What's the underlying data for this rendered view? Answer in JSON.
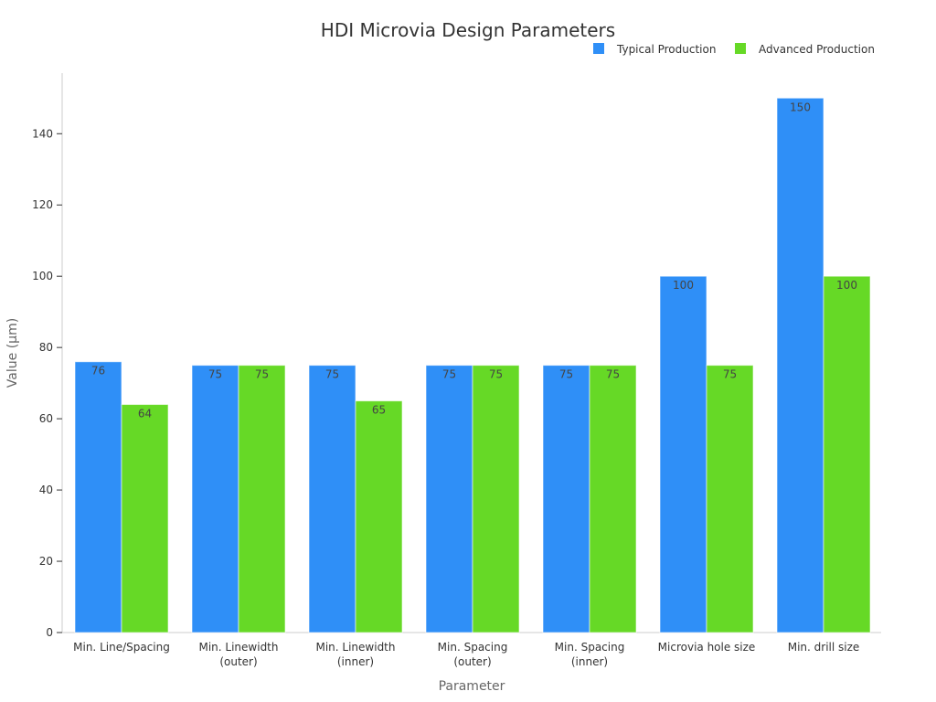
{
  "chart_data": {
    "type": "bar",
    "title": "HDI Microvia Design Parameters",
    "xlabel": "Parameter",
    "ylabel": "Value (μm)",
    "ylim": [
      0,
      157
    ],
    "yticks": [
      0,
      20,
      40,
      60,
      80,
      100,
      120,
      140
    ],
    "grid": false,
    "legend_position": "top-right",
    "categories": [
      [
        "Min. Line/Spacing"
      ],
      [
        "Min. Linewidth",
        "(outer)"
      ],
      [
        "Min. Linewidth",
        "(inner)"
      ],
      [
        "Min. Spacing",
        "(outer)"
      ],
      [
        "Min. Spacing",
        "(inner)"
      ],
      [
        "Microvia hole size"
      ],
      [
        "Min. drill size"
      ]
    ],
    "series": [
      {
        "name": "Typical Production",
        "color": "#2f8ff7",
        "values": [
          76,
          75,
          75,
          75,
          75,
          100,
          150
        ]
      },
      {
        "name": "Advanced Production",
        "color": "#66d926",
        "values": [
          64,
          75,
          65,
          75,
          75,
          75,
          100
        ]
      }
    ]
  }
}
